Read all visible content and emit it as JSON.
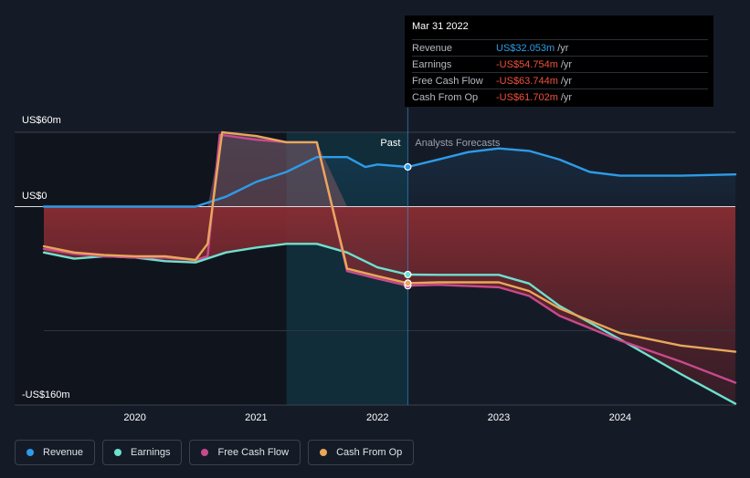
{
  "tooltip": {
    "date": "Mar 31 2022",
    "rows": [
      {
        "name": "Revenue",
        "value": "US$32.053m",
        "unit": "/yr",
        "color": "#2e9be8"
      },
      {
        "name": "Earnings",
        "value": "-US$54.754m",
        "unit": "/yr",
        "color": "#f0503c"
      },
      {
        "name": "Free Cash Flow",
        "value": "-US$63.744m",
        "unit": "/yr",
        "color": "#f0503c"
      },
      {
        "name": "Cash From Op",
        "value": "-US$61.702m",
        "unit": "/yr",
        "color": "#f0503c"
      }
    ]
  },
  "legend": [
    {
      "label": "Revenue",
      "color": "#2e9be8"
    },
    {
      "label": "Earnings",
      "color": "#6ee0cf"
    },
    {
      "label": "Free Cash Flow",
      "color": "#c8498e"
    },
    {
      "label": "Cash From Op",
      "color": "#e8a85a"
    }
  ],
  "chart_data": {
    "type": "line",
    "y_labels": [
      "US$60m",
      "US$0",
      "-US$160m"
    ],
    "ylim": [
      -160,
      60
    ],
    "xlim": [
      2019.25,
      2024.95
    ],
    "x_ticks": [
      2020,
      2021,
      2022,
      2023,
      2024
    ],
    "x_tick_labels": [
      "2020",
      "2021",
      "2022",
      "2023",
      "2024"
    ],
    "past_label": "Past",
    "forecast_label": "Analysts Forecasts",
    "divider_x": 2022.25,
    "highlight_start_x": 2021.25,
    "series": [
      {
        "name": "Revenue",
        "color": "#2e9be8",
        "points": [
          [
            2019.25,
            0
          ],
          [
            2019.75,
            0
          ],
          [
            2020.25,
            0
          ],
          [
            2020.5,
            0
          ],
          [
            2020.75,
            8
          ],
          [
            2021.0,
            20
          ],
          [
            2021.25,
            28
          ],
          [
            2021.5,
            40
          ],
          [
            2021.75,
            40
          ],
          [
            2021.9,
            32
          ],
          [
            2022.0,
            34
          ],
          [
            2022.25,
            32.053
          ],
          [
            2022.5,
            38
          ],
          [
            2022.75,
            44
          ],
          [
            2023.0,
            47
          ],
          [
            2023.25,
            45
          ],
          [
            2023.5,
            38
          ],
          [
            2023.75,
            28
          ],
          [
            2024.0,
            25
          ],
          [
            2024.5,
            25
          ],
          [
            2024.95,
            26
          ]
        ]
      },
      {
        "name": "Earnings",
        "color": "#6ee0cf",
        "points": [
          [
            2019.25,
            -37
          ],
          [
            2019.5,
            -42
          ],
          [
            2019.75,
            -40
          ],
          [
            2020.0,
            -41
          ],
          [
            2020.25,
            -44
          ],
          [
            2020.5,
            -45
          ],
          [
            2020.75,
            -37
          ],
          [
            2021.0,
            -33
          ],
          [
            2021.25,
            -30
          ],
          [
            2021.5,
            -30
          ],
          [
            2021.75,
            -37
          ],
          [
            2022.0,
            -49
          ],
          [
            2022.25,
            -54.754
          ],
          [
            2022.5,
            -55
          ],
          [
            2023.0,
            -55
          ],
          [
            2023.25,
            -62
          ],
          [
            2023.5,
            -80
          ],
          [
            2024.0,
            -107
          ],
          [
            2024.5,
            -135
          ],
          [
            2024.95,
            -159
          ]
        ]
      },
      {
        "name": "Free Cash Flow",
        "color": "#c8498e",
        "points": [
          [
            2019.25,
            -34
          ],
          [
            2019.5,
            -38
          ],
          [
            2019.75,
            -40
          ],
          [
            2020.0,
            -41
          ],
          [
            2020.25,
            -41
          ],
          [
            2020.5,
            -43
          ],
          [
            2020.6,
            -40
          ],
          [
            2020.7,
            58
          ],
          [
            2021.0,
            54
          ],
          [
            2021.25,
            52
          ],
          [
            2021.5,
            52
          ],
          [
            2021.75,
            -52
          ],
          [
            2022.0,
            -58
          ],
          [
            2022.25,
            -63.744
          ],
          [
            2022.5,
            -63
          ],
          [
            2023.0,
            -65
          ],
          [
            2023.25,
            -72
          ],
          [
            2023.5,
            -88
          ],
          [
            2024.0,
            -108
          ],
          [
            2024.5,
            -125
          ],
          [
            2024.95,
            -142
          ]
        ]
      },
      {
        "name": "Cash From Op",
        "color": "#e8a85a",
        "points": [
          [
            2019.25,
            -32
          ],
          [
            2019.5,
            -37
          ],
          [
            2019.75,
            -39
          ],
          [
            2020.0,
            -40
          ],
          [
            2020.25,
            -40
          ],
          [
            2020.5,
            -43
          ],
          [
            2020.6,
            -30
          ],
          [
            2020.72,
            60
          ],
          [
            2021.0,
            57
          ],
          [
            2021.25,
            52
          ],
          [
            2021.5,
            52
          ],
          [
            2021.75,
            -50
          ],
          [
            2022.0,
            -56
          ],
          [
            2022.25,
            -61.702
          ],
          [
            2022.5,
            -61
          ],
          [
            2023.0,
            -61
          ],
          [
            2023.25,
            -68
          ],
          [
            2023.5,
            -82
          ],
          [
            2024.0,
            -102
          ],
          [
            2024.5,
            -112
          ],
          [
            2024.95,
            -117
          ]
        ]
      }
    ]
  }
}
